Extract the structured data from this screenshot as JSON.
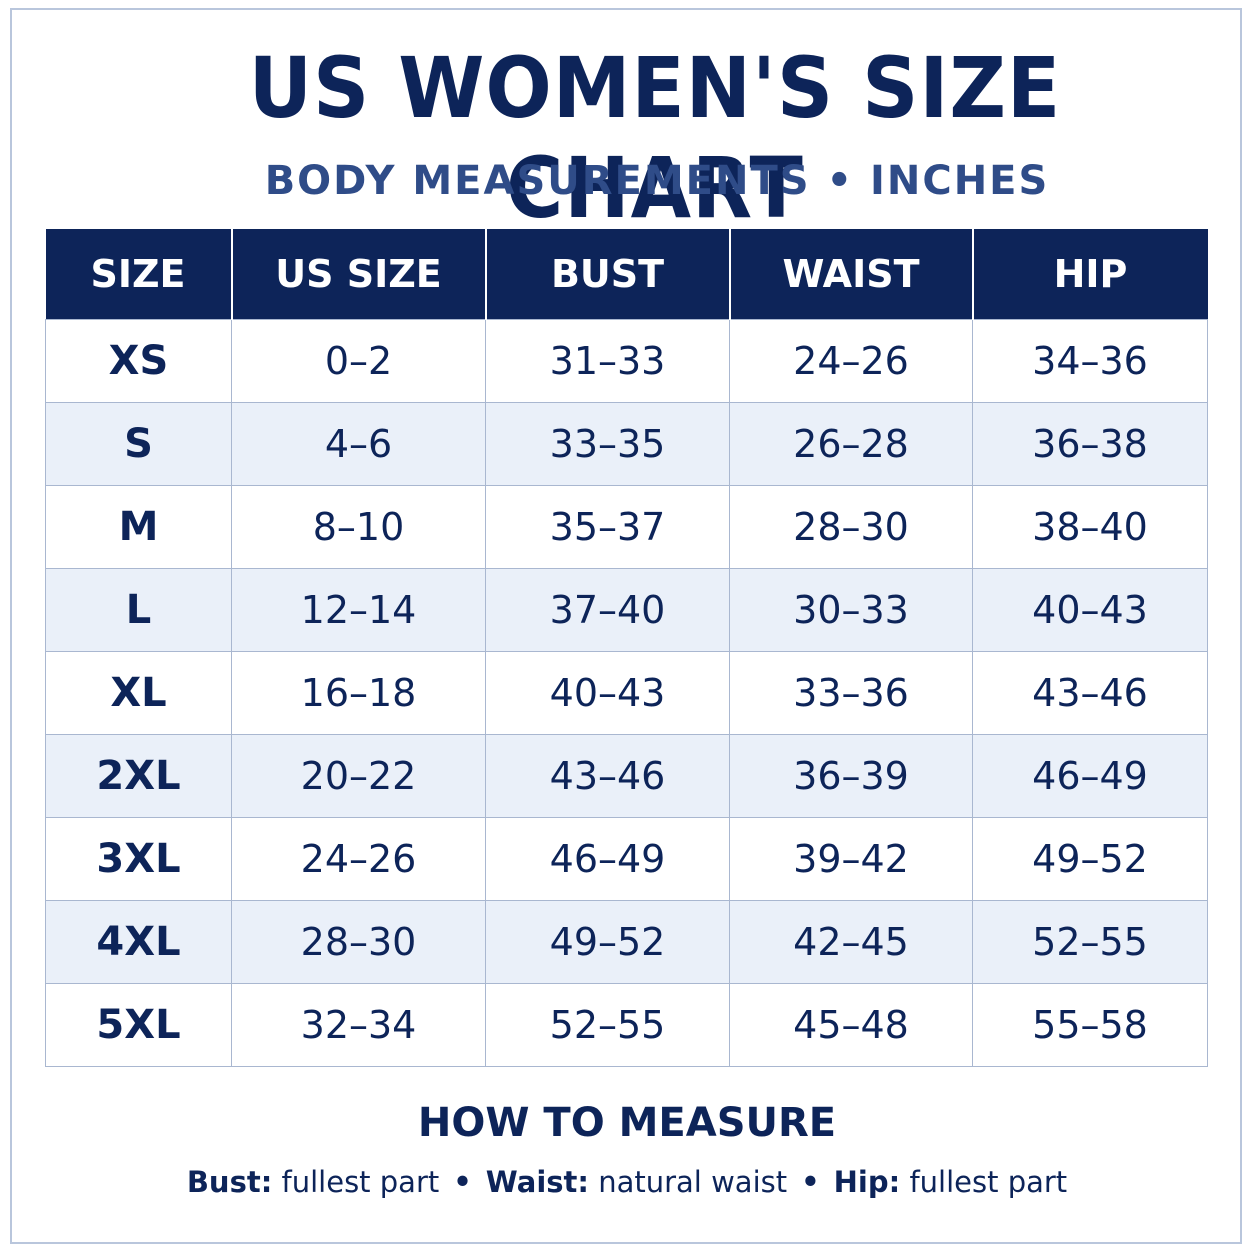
{
  "title": "US WOMEN'S SIZE CHART",
  "subtitle": "BODY MEASUREMENTS • INCHES",
  "colors": {
    "navy": "#0d2459",
    "subtitle_blue": "#2f4c88",
    "stripe": "#eaf0f9",
    "border": "#a9b7d0"
  },
  "table": {
    "headers": [
      "SIZE",
      "US SIZE",
      "BUST",
      "WAIST",
      "HIP"
    ],
    "rows": [
      [
        "XS",
        "0–2",
        "31–33",
        "24–26",
        "34–36"
      ],
      [
        "S",
        "4–6",
        "33–35",
        "26–28",
        "36–38"
      ],
      [
        "M",
        "8–10",
        "35–37",
        "28–30",
        "38–40"
      ],
      [
        "L",
        "12–14",
        "37–40",
        "30–33",
        "40–43"
      ],
      [
        "XL",
        "16–18",
        "40–43",
        "33–36",
        "43–46"
      ],
      [
        "2XL",
        "20–22",
        "43–46",
        "36–39",
        "46–49"
      ],
      [
        "3XL",
        "24–26",
        "46–49",
        "39–42",
        "49–52"
      ],
      [
        "4XL",
        "28–30",
        "49–52",
        "42–45",
        "52–55"
      ],
      [
        "5XL",
        "32–34",
        "52–55",
        "45–48",
        "55–58"
      ]
    ]
  },
  "how_to_measure": {
    "heading": "HOW TO MEASURE",
    "separator": "•",
    "items": [
      {
        "label": "Bust:",
        "text": "fullest part"
      },
      {
        "label": "Waist:",
        "text": "natural waist"
      },
      {
        "label": "Hip:",
        "text": "fullest part"
      }
    ]
  }
}
